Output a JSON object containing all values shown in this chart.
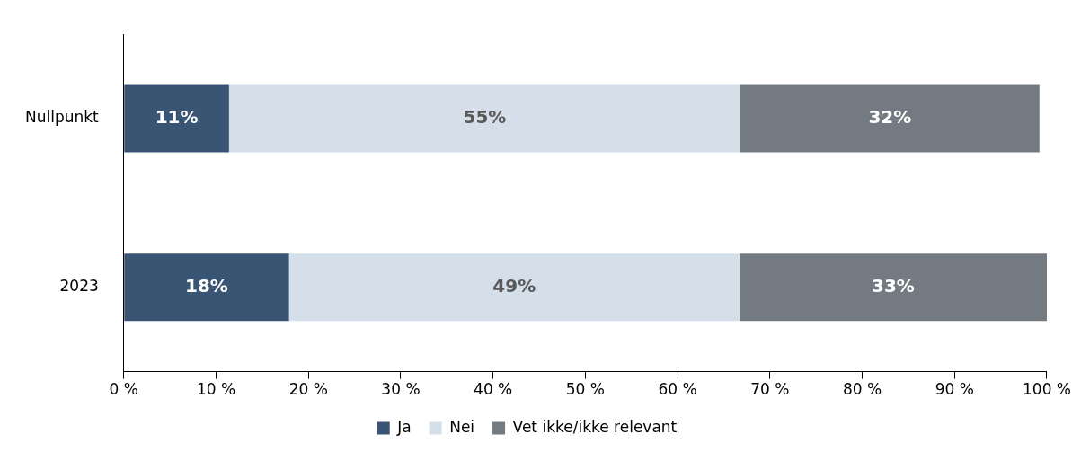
{
  "chart_data": {
    "type": "bar",
    "orientation": "horizontal",
    "stacked": true,
    "categories": [
      "Nullpunkt",
      "2023"
    ],
    "series": [
      {
        "name": "Ja",
        "color": "#3a5573",
        "values": [
          11.4,
          17.9
        ],
        "value_labels": [
          "11%",
          "18%"
        ]
      },
      {
        "name": "Nei",
        "color": "#d5dfea",
        "values": [
          55.4,
          48.8
        ],
        "value_labels": [
          "55%",
          "49%"
        ]
      },
      {
        "name": "Vet ikke/ikke relevant",
        "color": "#747a81",
        "values": [
          32.4,
          33.3
        ],
        "value_labels": [
          "32%",
          "33%"
        ]
      }
    ],
    "xlim": [
      0,
      100
    ],
    "xticks": [
      {
        "value": 0,
        "label": "0 %"
      },
      {
        "value": 10,
        "label": "10 %"
      },
      {
        "value": 20,
        "label": "20 %"
      },
      {
        "value": 30,
        "label": "30 %"
      },
      {
        "value": 40,
        "label": "40 %"
      },
      {
        "value": 50,
        "label": "50 %"
      },
      {
        "value": 60,
        "label": "60 %"
      },
      {
        "value": 70,
        "label": "70 %"
      },
      {
        "value": 80,
        "label": "80 %"
      },
      {
        "value": 90,
        "label": "90 %"
      },
      {
        "value": 100,
        "label": "100 %"
      }
    ],
    "grid": false,
    "legend": "bottom"
  }
}
